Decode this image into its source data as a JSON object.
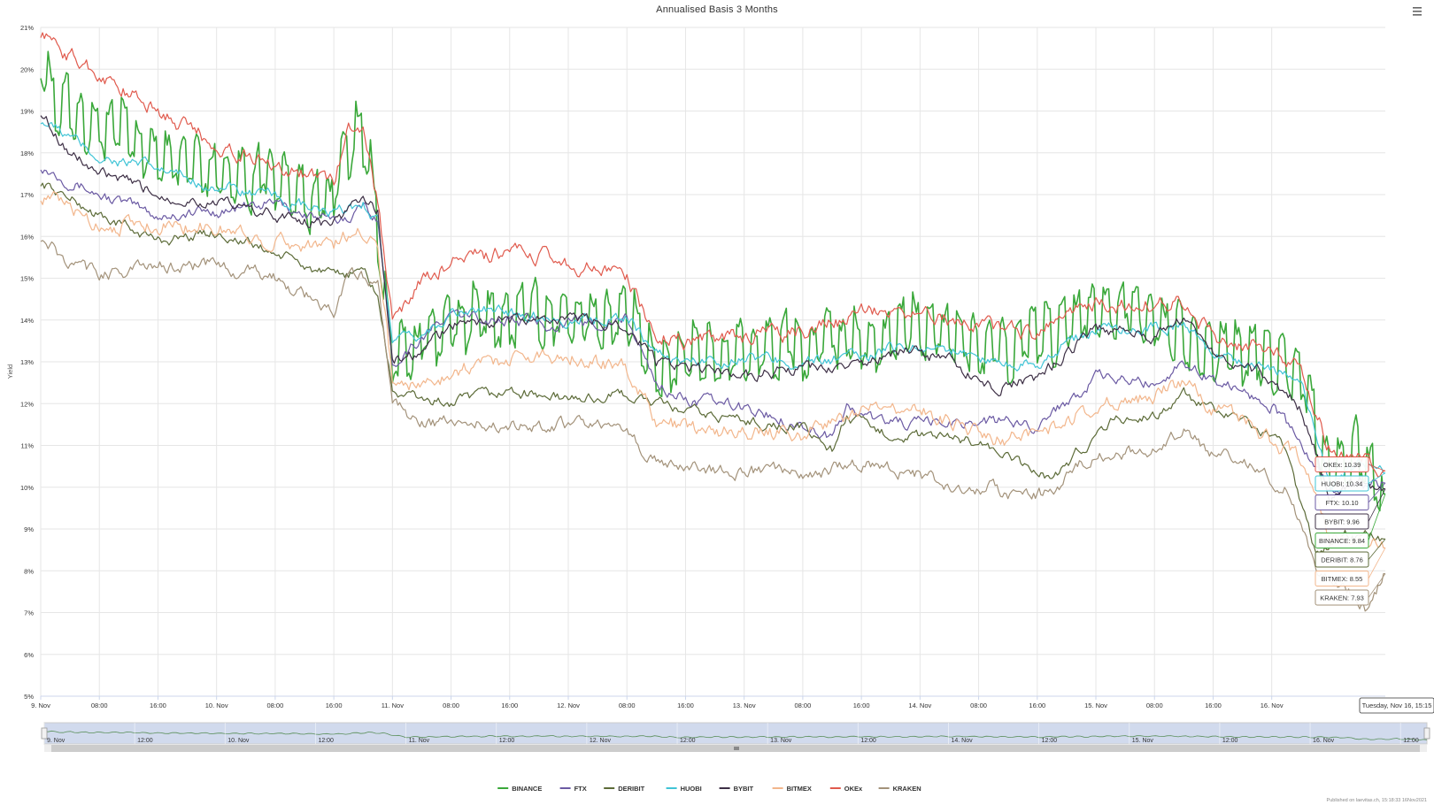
{
  "menu": {
    "icon": "hamburger-menu-icon"
  },
  "chart_data": {
    "type": "line",
    "title": "Annualised Basis 3 Months",
    "ylabel": "Yield",
    "xlabel": "",
    "ylim": [
      5,
      21
    ],
    "y_ticks": [
      "5%",
      "6%",
      "7%",
      "8%",
      "9%",
      "10%",
      "11%",
      "12%",
      "13%",
      "14%",
      "15%",
      "16%",
      "17%",
      "18%",
      "19%",
      "20%",
      "21%"
    ],
    "x_range_hours": [
      0,
      183.5
    ],
    "x_tick_labels": [
      "9. Nov",
      "08:00",
      "16:00",
      "10. Nov",
      "08:00",
      "16:00",
      "11. Nov",
      "08:00",
      "16:00",
      "12. Nov",
      "08:00",
      "16:00",
      "13. Nov",
      "08:00",
      "16:00",
      "14. Nov",
      "08:00",
      "16:00",
      "15. Nov",
      "08:00",
      "16:00",
      "16. Nov"
    ],
    "navigator_labels": [
      "9. Nov",
      "12:00",
      "10. Nov",
      "12:00",
      "11. Nov",
      "12:00",
      "12. Nov",
      "12:00",
      "13. Nov",
      "12:00",
      "14. Nov",
      "12:00",
      "15. Nov",
      "12:00",
      "16. Nov",
      "12:00"
    ],
    "grid": true,
    "legend_position": "bottom-center",
    "series": [
      {
        "name": "BINANCE",
        "color": "#3aa83a",
        "last": 9.84,
        "label": "BINANCE: 9.84",
        "noise": 0.55,
        "spiky": true,
        "points": [
          [
            0,
            20.5
          ],
          [
            2,
            19.2
          ],
          [
            8,
            18.6
          ],
          [
            16,
            17.8
          ],
          [
            24,
            17.6
          ],
          [
            32,
            17.4
          ],
          [
            40,
            16.6
          ],
          [
            41,
            17.8
          ],
          [
            43,
            18.4
          ],
          [
            45,
            17.7
          ],
          [
            47,
            14.5
          ],
          [
            48,
            12.8
          ],
          [
            52,
            13.5
          ],
          [
            56,
            13.9
          ],
          [
            64,
            14.0
          ],
          [
            72,
            14.2
          ],
          [
            80,
            14.0
          ],
          [
            84,
            12.6
          ],
          [
            88,
            13.3
          ],
          [
            96,
            13.2
          ],
          [
            104,
            13.3
          ],
          [
            112,
            13.4
          ],
          [
            118,
            13.8
          ],
          [
            124,
            13.6
          ],
          [
            130,
            13.2
          ],
          [
            136,
            13.4
          ],
          [
            144,
            14.2
          ],
          [
            152,
            14.0
          ],
          [
            160,
            13.5
          ],
          [
            166,
            13.0
          ],
          [
            172,
            12.8
          ],
          [
            176,
            10.3
          ],
          [
            180,
            10.9
          ],
          [
            183.5,
            9.84
          ]
        ]
      },
      {
        "name": "FTX",
        "color": "#6b5aa3",
        "last": 10.1,
        "label": "FTX: 10.10",
        "noise": 0.22,
        "points": [
          [
            0,
            17.7
          ],
          [
            8,
            17.0
          ],
          [
            16,
            16.5
          ],
          [
            24,
            16.6
          ],
          [
            32,
            16.8
          ],
          [
            40,
            16.3
          ],
          [
            44,
            16.7
          ],
          [
            46,
            16.5
          ],
          [
            48,
            13.0
          ],
          [
            52,
            13.6
          ],
          [
            56,
            14.1
          ],
          [
            64,
            14.0
          ],
          [
            72,
            13.9
          ],
          [
            80,
            14.0
          ],
          [
            84,
            12.5
          ],
          [
            88,
            12.1
          ],
          [
            96,
            11.9
          ],
          [
            104,
            11.5
          ],
          [
            108,
            11.2
          ],
          [
            110,
            11.9
          ],
          [
            114,
            11.6
          ],
          [
            120,
            11.5
          ],
          [
            128,
            11.6
          ],
          [
            136,
            11.5
          ],
          [
            144,
            12.6
          ],
          [
            152,
            12.5
          ],
          [
            156,
            13.0
          ],
          [
            160,
            12.6
          ],
          [
            168,
            12.0
          ],
          [
            172,
            11.0
          ],
          [
            176,
            9.9
          ],
          [
            183.5,
            10.1
          ]
        ]
      },
      {
        "name": "DERIBIT",
        "color": "#5c6b38",
        "last": 8.76,
        "label": "DERIBIT: 8.76",
        "noise": 0.2,
        "points": [
          [
            0,
            17.3
          ],
          [
            8,
            16.5
          ],
          [
            16,
            15.9
          ],
          [
            24,
            16.1
          ],
          [
            32,
            15.6
          ],
          [
            40,
            15.0
          ],
          [
            44,
            15.2
          ],
          [
            46,
            14.6
          ],
          [
            48,
            12.3
          ],
          [
            52,
            12.1
          ],
          [
            56,
            12.0
          ],
          [
            64,
            12.3
          ],
          [
            72,
            12.1
          ],
          [
            80,
            12.2
          ],
          [
            84,
            12.0
          ],
          [
            88,
            11.8
          ],
          [
            96,
            11.6
          ],
          [
            104,
            11.4
          ],
          [
            108,
            10.9
          ],
          [
            110,
            11.7
          ],
          [
            114,
            11.3
          ],
          [
            120,
            11.2
          ],
          [
            128,
            11.1
          ],
          [
            134,
            10.5
          ],
          [
            138,
            10.2
          ],
          [
            142,
            10.9
          ],
          [
            146,
            11.6
          ],
          [
            152,
            11.7
          ],
          [
            156,
            12.2
          ],
          [
            160,
            11.8
          ],
          [
            166,
            11.4
          ],
          [
            170,
            10.9
          ],
          [
            174,
            8.4
          ],
          [
            178,
            8.9
          ],
          [
            183.5,
            8.76
          ]
        ]
      },
      {
        "name": "HUOBI",
        "color": "#40c4d6",
        "last": 10.34,
        "label": "HUOBI: 10.34",
        "noise": 0.22,
        "points": [
          [
            0,
            18.8
          ],
          [
            8,
            17.9
          ],
          [
            16,
            17.6
          ],
          [
            24,
            17.2
          ],
          [
            32,
            16.9
          ],
          [
            40,
            16.5
          ],
          [
            44,
            16.8
          ],
          [
            46,
            16.4
          ],
          [
            48,
            13.4
          ],
          [
            52,
            13.6
          ],
          [
            56,
            14.2
          ],
          [
            64,
            14.2
          ],
          [
            72,
            14.0
          ],
          [
            80,
            14.1
          ],
          [
            84,
            13.2
          ],
          [
            88,
            13.0
          ],
          [
            96,
            13.1
          ],
          [
            104,
            13.0
          ],
          [
            112,
            13.1
          ],
          [
            118,
            13.4
          ],
          [
            124,
            13.3
          ],
          [
            130,
            13.0
          ],
          [
            136,
            13.0
          ],
          [
            144,
            13.8
          ],
          [
            152,
            13.8
          ],
          [
            156,
            13.9
          ],
          [
            160,
            13.2
          ],
          [
            168,
            12.9
          ],
          [
            172,
            12.4
          ],
          [
            176,
            10.1
          ],
          [
            180,
            10.6
          ],
          [
            183.5,
            10.34
          ]
        ]
      },
      {
        "name": "BYBIT",
        "color": "#3d2f45",
        "last": 9.96,
        "label": "BYBIT: 9.96",
        "noise": 0.22,
        "points": [
          [
            0,
            19.0
          ],
          [
            4,
            18.0
          ],
          [
            8,
            17.5
          ],
          [
            16,
            17.0
          ],
          [
            24,
            16.8
          ],
          [
            32,
            16.5
          ],
          [
            40,
            16.3
          ],
          [
            44,
            17.0
          ],
          [
            46,
            16.6
          ],
          [
            48,
            13.0
          ],
          [
            52,
            13.2
          ],
          [
            56,
            13.9
          ],
          [
            64,
            14.0
          ],
          [
            72,
            14.0
          ],
          [
            80,
            13.9
          ],
          [
            84,
            13.0
          ],
          [
            88,
            12.8
          ],
          [
            96,
            12.7
          ],
          [
            104,
            12.8
          ],
          [
            112,
            12.9
          ],
          [
            118,
            13.3
          ],
          [
            124,
            13.0
          ],
          [
            130,
            12.4
          ],
          [
            136,
            12.6
          ],
          [
            144,
            13.8
          ],
          [
            152,
            13.6
          ],
          [
            156,
            14.1
          ],
          [
            160,
            13.3
          ],
          [
            168,
            12.6
          ],
          [
            172,
            11.9
          ],
          [
            176,
            9.8
          ],
          [
            180,
            10.2
          ],
          [
            183.5,
            9.96
          ]
        ]
      },
      {
        "name": "BITMEX",
        "color": "#f2b68c",
        "last": 8.55,
        "label": "BITMEX: 8.55",
        "noise": 0.3,
        "points": [
          [
            0,
            17.0
          ],
          [
            8,
            16.3
          ],
          [
            16,
            16.3
          ],
          [
            24,
            16.2
          ],
          [
            32,
            15.9
          ],
          [
            40,
            15.8
          ],
          [
            44,
            16.2
          ],
          [
            46,
            15.8
          ],
          [
            48,
            12.6
          ],
          [
            52,
            12.4
          ],
          [
            56,
            12.8
          ],
          [
            64,
            13.1
          ],
          [
            72,
            13.2
          ],
          [
            80,
            12.8
          ],
          [
            84,
            11.6
          ],
          [
            88,
            11.4
          ],
          [
            96,
            11.3
          ],
          [
            104,
            11.3
          ],
          [
            112,
            11.8
          ],
          [
            118,
            12.0
          ],
          [
            124,
            11.6
          ],
          [
            130,
            11.1
          ],
          [
            136,
            11.2
          ],
          [
            144,
            12.0
          ],
          [
            152,
            12.2
          ],
          [
            156,
            12.5
          ],
          [
            160,
            11.9
          ],
          [
            166,
            11.4
          ],
          [
            172,
            10.6
          ],
          [
            176,
            8.8
          ],
          [
            180,
            8.8
          ],
          [
            183.5,
            8.55
          ]
        ]
      },
      {
        "name": "OKEx",
        "color": "#e05a4d",
        "last": 10.39,
        "label": "OKEx: 10.39",
        "noise": 0.3,
        "points": [
          [
            0,
            20.9
          ],
          [
            4,
            20.3
          ],
          [
            8,
            19.9
          ],
          [
            16,
            19.0
          ],
          [
            24,
            18.2
          ],
          [
            32,
            17.7
          ],
          [
            40,
            17.3
          ],
          [
            42,
            18.6
          ],
          [
            44,
            18.7
          ],
          [
            46,
            16.8
          ],
          [
            48,
            14.0
          ],
          [
            52,
            14.9
          ],
          [
            56,
            15.4
          ],
          [
            64,
            15.6
          ],
          [
            72,
            15.4
          ],
          [
            80,
            15.0
          ],
          [
            84,
            13.7
          ],
          [
            88,
            13.5
          ],
          [
            96,
            13.6
          ],
          [
            104,
            13.7
          ],
          [
            112,
            14.1
          ],
          [
            118,
            14.2
          ],
          [
            124,
            14.0
          ],
          [
            130,
            13.8
          ],
          [
            136,
            13.7
          ],
          [
            144,
            14.4
          ],
          [
            152,
            14.4
          ],
          [
            156,
            14.4
          ],
          [
            160,
            13.6
          ],
          [
            168,
            13.3
          ],
          [
            172,
            12.9
          ],
          [
            176,
            10.9
          ],
          [
            180,
            10.8
          ],
          [
            183.5,
            10.39
          ]
        ]
      },
      {
        "name": "KRAKEN",
        "color": "#a3927a",
        "last": 7.93,
        "label": "KRAKEN: 7.93",
        "noise": 0.25,
        "points": [
          [
            0,
            16.0
          ],
          [
            4,
            15.3
          ],
          [
            8,
            15.1
          ],
          [
            16,
            15.3
          ],
          [
            24,
            15.3
          ],
          [
            32,
            15.0
          ],
          [
            40,
            14.2
          ],
          [
            42,
            15.0
          ],
          [
            46,
            15.0
          ],
          [
            48,
            11.9
          ],
          [
            52,
            11.6
          ],
          [
            56,
            11.5
          ],
          [
            64,
            11.5
          ],
          [
            72,
            11.5
          ],
          [
            80,
            11.3
          ],
          [
            84,
            10.6
          ],
          [
            88,
            10.5
          ],
          [
            96,
            10.4
          ],
          [
            104,
            10.3
          ],
          [
            112,
            10.6
          ],
          [
            118,
            10.4
          ],
          [
            124,
            10.1
          ],
          [
            130,
            10.0
          ],
          [
            134,
            9.7
          ],
          [
            138,
            9.9
          ],
          [
            142,
            10.5
          ],
          [
            146,
            10.8
          ],
          [
            152,
            10.9
          ],
          [
            156,
            11.3
          ],
          [
            160,
            10.8
          ],
          [
            166,
            10.5
          ],
          [
            170,
            10.0
          ],
          [
            174,
            8.0
          ],
          [
            178,
            7.6
          ],
          [
            181,
            7.1
          ],
          [
            183.5,
            7.93
          ]
        ]
      }
    ],
    "tooltip_date": "Tuesday, Nov 16, 15:15"
  },
  "footer": {
    "published": "Published on laevitas.ch, 15:18:33 16Nov2021"
  }
}
